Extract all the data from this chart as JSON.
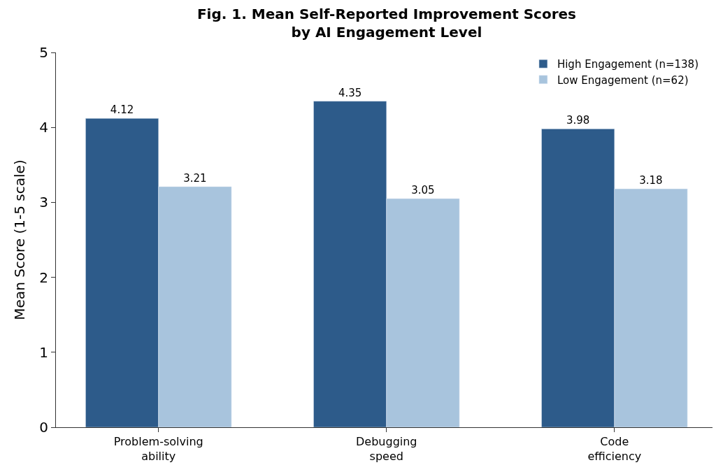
{
  "chart_data": {
    "type": "bar",
    "title": "Fig. 1. Mean Self-Reported Improvement Scores\nby AI Engagement Level",
    "ylabel": "Mean Score (1-5 scale)",
    "categories": [
      "Problem-solving\nability",
      "Debugging\nspeed",
      "Code\nefficiency"
    ],
    "series": [
      {
        "name": "High Engagement (n=138)",
        "color": "#2d5b8a",
        "values": [
          4.12,
          4.35,
          3.98
        ]
      },
      {
        "name": "Low Engagement (n=62)",
        "color": "#a8c4dd",
        "values": [
          3.21,
          3.05,
          3.18
        ]
      }
    ],
    "ylim": [
      0,
      5
    ],
    "yticks": [
      0,
      1,
      2,
      3,
      4,
      5
    ],
    "data_labels": true,
    "legend": "top right"
  }
}
